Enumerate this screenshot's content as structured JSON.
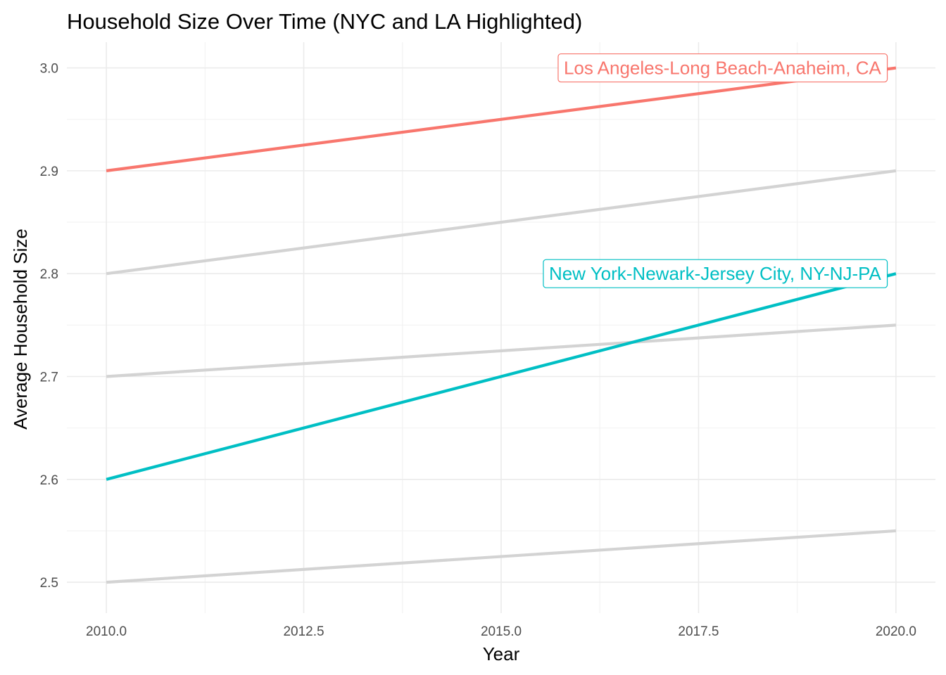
{
  "chart_data": {
    "type": "line",
    "title": "Household Size Over Time (NYC and LA Highlighted)",
    "xlabel": "Year",
    "ylabel": "Average Household Size",
    "xlim": [
      2009.5,
      2020.5
    ],
    "ylim": [
      2.47,
      3.025
    ],
    "xticks": [
      2010,
      2012.5,
      2015,
      2017.5,
      2020
    ],
    "xtick_labels": [
      "2010.0",
      "2012.5",
      "2015.0",
      "2017.5",
      "2020.0"
    ],
    "yticks": [
      2.5,
      2.6,
      2.7,
      2.8,
      2.9,
      3.0
    ],
    "ytick_labels": [
      "2.5",
      "2.6",
      "2.7",
      "2.8",
      "2.9",
      "3.0"
    ],
    "grid": true,
    "legend": "none",
    "colors": {
      "highlight_la": "#f8766d",
      "highlight_nyc": "#00bfc4",
      "background_series": "#d3d3d3"
    },
    "series": [
      {
        "x": [
          2010,
          2020
        ],
        "y": [
          2.8,
          2.9
        ],
        "highlight": false
      },
      {
        "x": [
          2010,
          2020
        ],
        "y": [
          2.7,
          2.75
        ],
        "highlight": false
      },
      {
        "x": [
          2010,
          2020
        ],
        "y": [
          2.5,
          2.55
        ],
        "highlight": false
      },
      {
        "name": "Los Angeles-Long Beach-Anaheim, CA",
        "x": [
          2010,
          2020
        ],
        "y": [
          2.9,
          3.0
        ],
        "highlight": true,
        "color": "#f8766d"
      },
      {
        "name": "New York-Newark-Jersey City, NY-NJ-PA",
        "x": [
          2010,
          2020
        ],
        "y": [
          2.6,
          2.8
        ],
        "highlight": true,
        "color": "#00bfc4"
      }
    ]
  }
}
